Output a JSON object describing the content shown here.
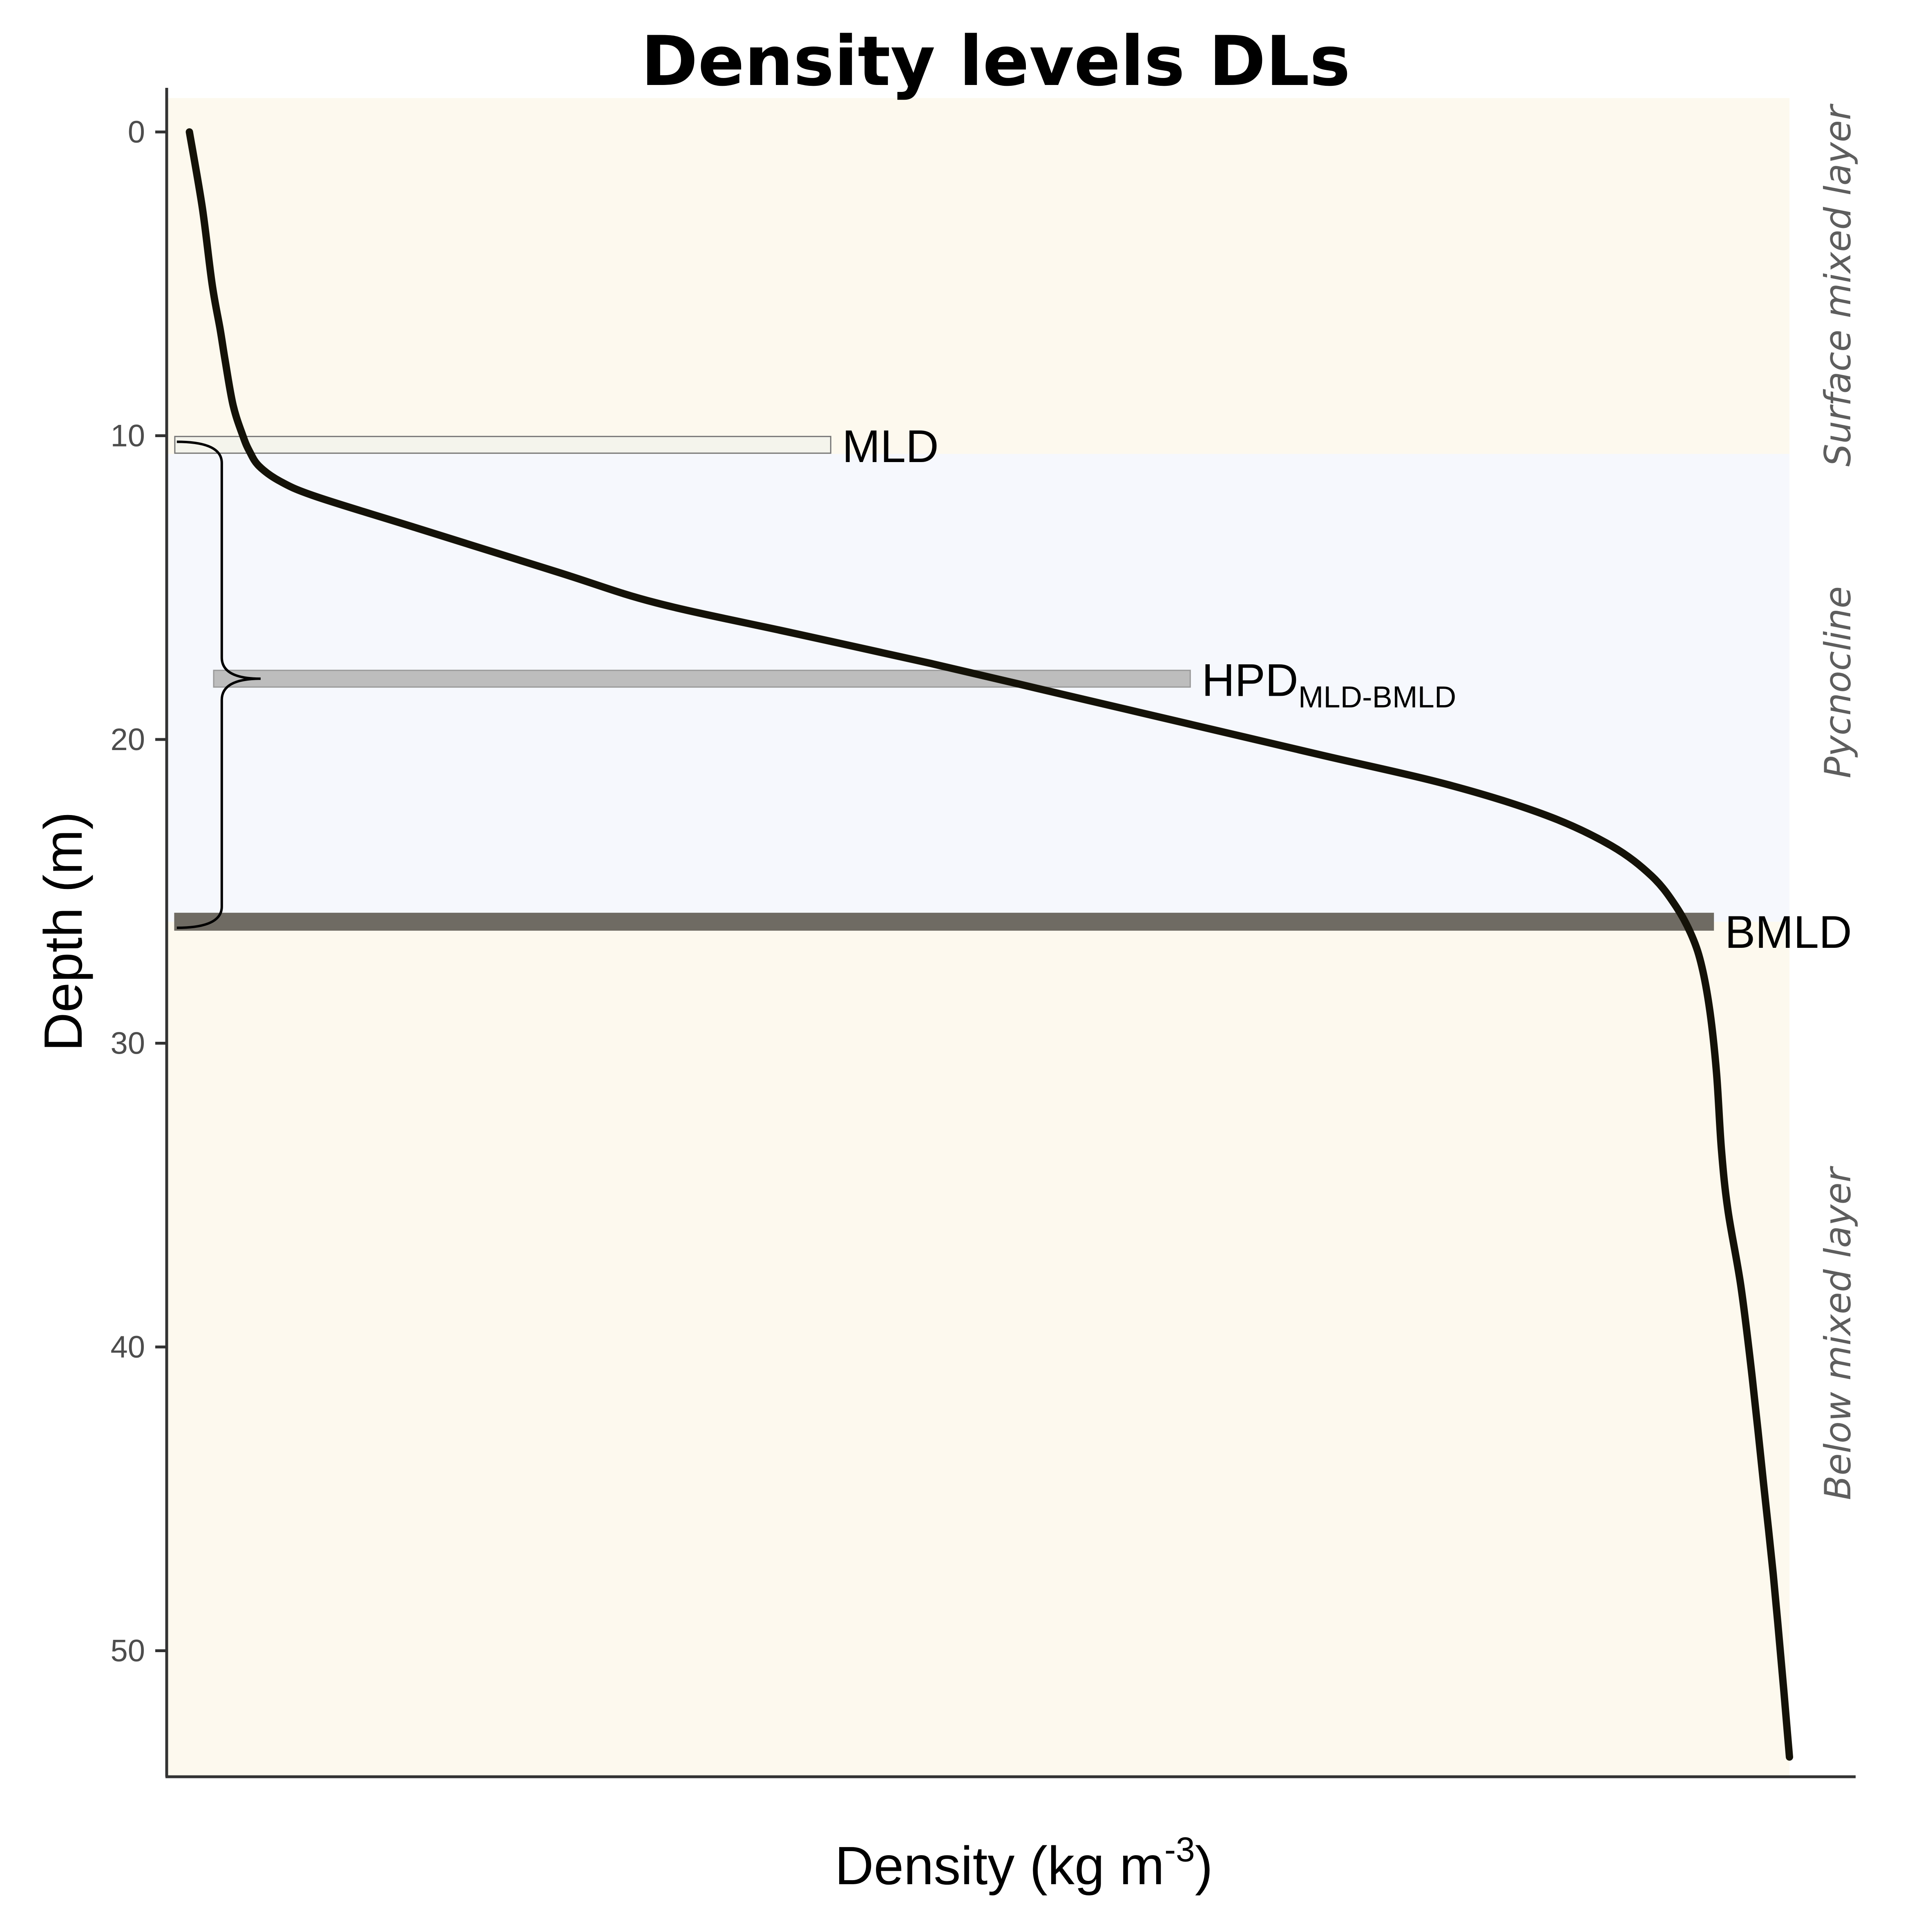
{
  "chart_data": {
    "type": "line",
    "title": "Density levels DLs",
    "xlabel": {
      "main": "Density (kg m",
      "superscript": "-3",
      "close": ")"
    },
    "ylabel": "Depth (m)",
    "y_axis": {
      "range": [
        -1.5,
        54
      ],
      "reversed": true,
      "ticks": [
        0,
        10,
        20,
        30,
        40,
        50
      ],
      "tick_labels": [
        "0",
        "10",
        "20",
        "30",
        "40",
        "50"
      ]
    },
    "x_axis": {
      "range": [
        0,
        1
      ],
      "ticks_shown": false
    },
    "zones": [
      {
        "label": "Surface mixed layer",
        "top": -1.5,
        "bottom": 10.6,
        "color": "#fdf9ee"
      },
      {
        "label": "Pycnocline",
        "top": 10.6,
        "bottom": 26.0,
        "color": "#f6f8fd"
      },
      {
        "label": "Below mixed layer",
        "top": 26.0,
        "bottom": 54,
        "color": "#fdf9ee"
      }
    ],
    "levels": [
      {
        "label": "MLD",
        "subscript": "",
        "depth": 10.3,
        "x_start": 0.003,
        "x_end": 0.408,
        "thickness": 0.55,
        "fill": "#f4f4ec",
        "stroke": "#777777"
      },
      {
        "label": "HPD",
        "subscript": "MLD-BMLD",
        "depth": 18.0,
        "x_start": 0.027,
        "x_end": 0.63,
        "thickness": 0.55,
        "fill": "#bdbdbd",
        "stroke": "#999999"
      },
      {
        "label": "BMLD",
        "subscript": "",
        "depth": 26.0,
        "x_start": 0.003,
        "x_end": 0.953,
        "thickness": 0.55,
        "fill": "#6f6b63",
        "stroke": "#6f6b63"
      }
    ],
    "bracket": {
      "top": 10.2,
      "bottom": 26.2,
      "tip": 18.0,
      "x": 0.032,
      "tip_x": 0.056
    },
    "series": [
      {
        "x": [
          0.012,
          0.02,
          0.026,
          0.031,
          0.034,
          0.039,
          0.045,
          0.049,
          0.055,
          0.068,
          0.09,
          0.15,
          0.24,
          0.3,
          0.385,
          0.47,
          0.55,
          0.63,
          0.71,
          0.79,
          0.85,
          0.89,
          0.915,
          0.93,
          0.94,
          0.946,
          0.951,
          0.955,
          0.958,
          0.962,
          0.97,
          0.977,
          0.984,
          0.99,
          0.996,
          1.0
        ],
        "y": [
          0,
          2.5,
          5.0,
          6.5,
          7.5,
          9.0,
          10.0,
          10.5,
          11.0,
          11.5,
          12.0,
          13.0,
          14.5,
          15.5,
          16.5,
          17.5,
          18.5,
          19.5,
          20.5,
          21.5,
          22.5,
          23.5,
          24.5,
          25.5,
          26.5,
          27.5,
          29.0,
          31.0,
          33.5,
          35.5,
          38.0,
          41.0,
          44.5,
          47.5,
          51.0,
          53.5
        ],
        "color": "#141208"
      }
    ]
  }
}
